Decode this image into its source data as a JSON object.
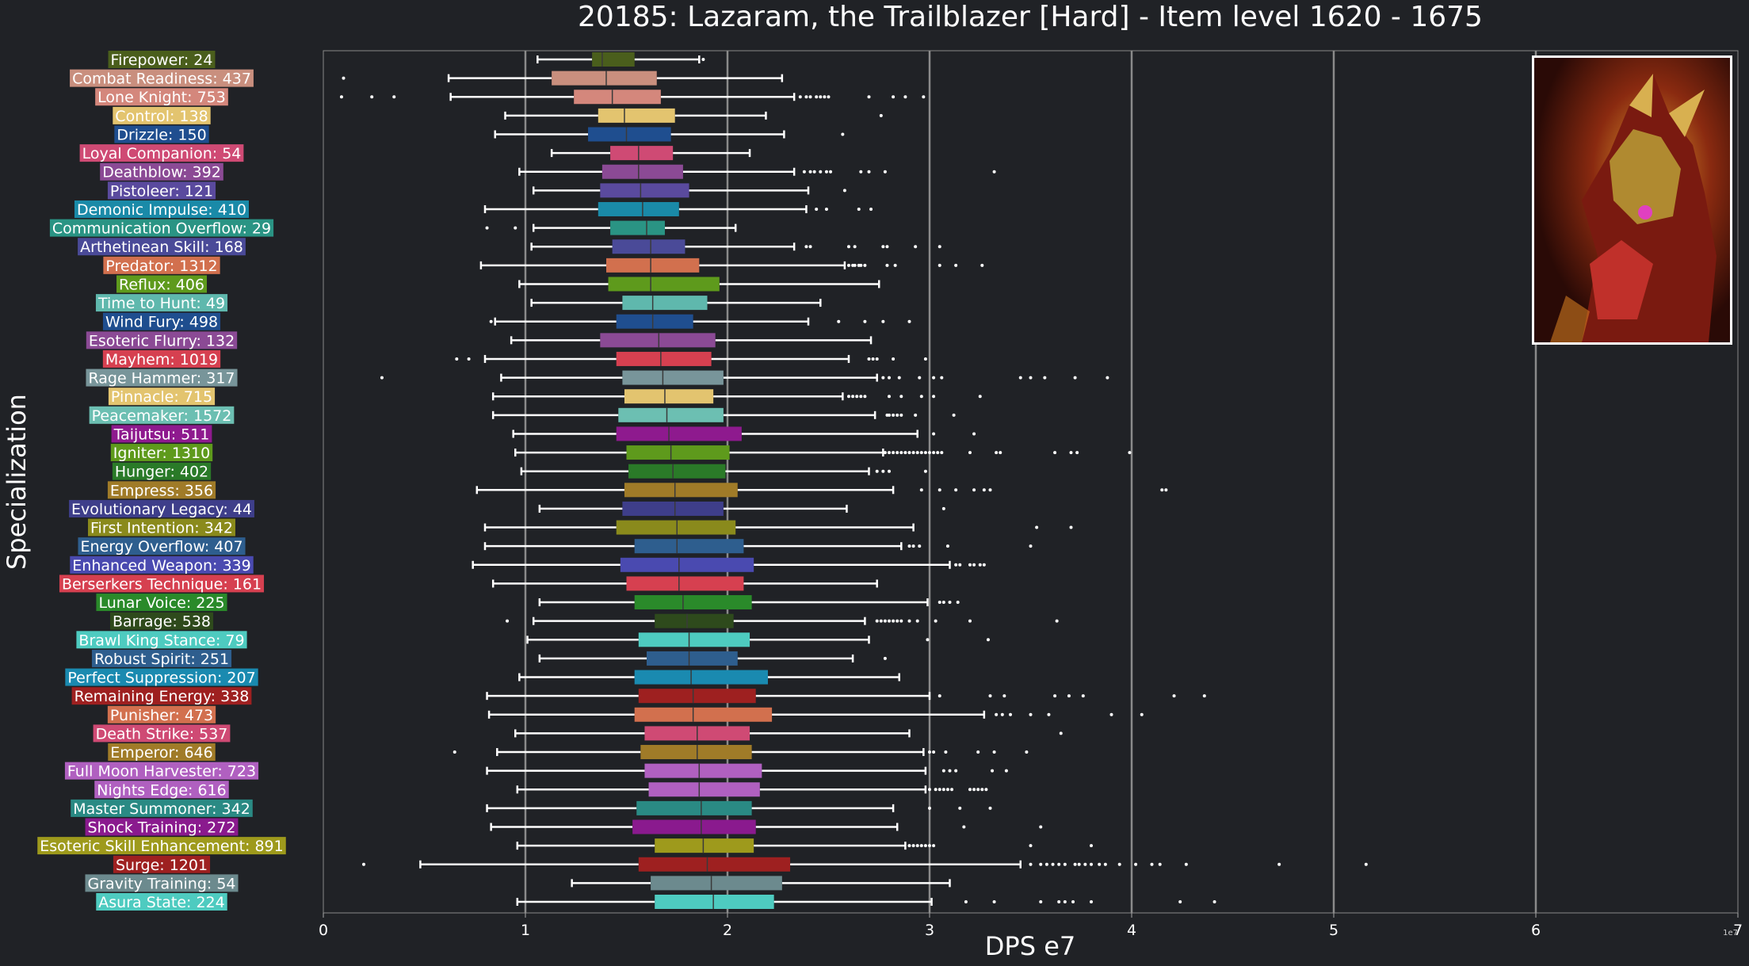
{
  "chart_data": {
    "type": "boxplot",
    "title": "20185: Lazaram, the Trailblazer [Hard] - Item level 1620 - 1675",
    "xlabel": "DPS e7",
    "ylabel": "Specialization",
    "xlim": [
      0,
      7
    ],
    "x_ticks": [
      "0",
      "1",
      "2",
      "3",
      "4",
      "5",
      "6",
      "7"
    ],
    "x_offset_label": "1e7",
    "grid": "vertical",
    "series": [
      {
        "label": "Firepower: 24",
        "color": "#4a5e1c",
        "whisker_low": 1.06,
        "q1": 1.33,
        "median": 1.38,
        "q3": 1.54,
        "whisker_high": 1.86,
        "outliers": [
          1.88
        ]
      },
      {
        "label": "Combat Readiness: 437",
        "color": "#c98f7e",
        "whisker_low": 0.62,
        "q1": 1.13,
        "median": 1.4,
        "q3": 1.65,
        "whisker_high": 2.27,
        "outliers": [
          0.1
        ]
      },
      {
        "label": "Lone Knight: 753",
        "color": "#d4877c",
        "whisker_low": 0.63,
        "q1": 1.24,
        "median": 1.43,
        "q3": 1.67,
        "whisker_high": 2.33,
        "outliers": [
          0.09,
          0.24,
          0.35,
          2.36,
          2.39,
          2.41,
          2.44,
          2.46,
          2.48,
          2.5,
          2.7,
          2.82,
          2.88,
          2.97
        ]
      },
      {
        "label": "Control: 138",
        "color": "#e3c46f",
        "whisker_low": 0.9,
        "q1": 1.36,
        "median": 1.49,
        "q3": 1.74,
        "whisker_high": 2.19,
        "outliers": [
          2.76
        ]
      },
      {
        "label": "Drizzle: 150",
        "color": "#1f4e8f",
        "whisker_low": 0.85,
        "q1": 1.31,
        "median": 1.5,
        "q3": 1.72,
        "whisker_high": 2.28,
        "outliers": [
          2.57
        ]
      },
      {
        "label": "Loyal Companion: 54",
        "color": "#cf4a74",
        "whisker_low": 1.13,
        "q1": 1.42,
        "median": 1.56,
        "q3": 1.73,
        "whisker_high": 2.11,
        "outliers": []
      },
      {
        "label": "Deathblow: 392",
        "color": "#8b4a95",
        "whisker_low": 0.97,
        "q1": 1.38,
        "median": 1.56,
        "q3": 1.78,
        "whisker_high": 2.33,
        "outliers": [
          2.38,
          2.41,
          2.43,
          2.46,
          2.49,
          2.51,
          2.66,
          2.7,
          2.78,
          3.32
        ]
      },
      {
        "label": "Pistoleer: 121",
        "color": "#5a4a9e",
        "whisker_low": 1.04,
        "q1": 1.37,
        "median": 1.57,
        "q3": 1.81,
        "whisker_high": 2.4,
        "outliers": [
          2.58
        ]
      },
      {
        "label": "Demonic Impulse: 410",
        "color": "#1a8aa8",
        "whisker_low": 0.8,
        "q1": 1.36,
        "median": 1.58,
        "q3": 1.76,
        "whisker_high": 2.39,
        "outliers": [
          2.44,
          2.49,
          2.65,
          2.71
        ]
      },
      {
        "label": "Communication Overflow: 29",
        "color": "#2a9484",
        "whisker_low": 1.04,
        "q1": 1.42,
        "median": 1.6,
        "q3": 1.69,
        "whisker_high": 2.04,
        "outliers": [
          0.81,
          0.95
        ]
      },
      {
        "label": "Arthetinean Skill: 168",
        "color": "#4a4a98",
        "whisker_low": 1.03,
        "q1": 1.43,
        "median": 1.62,
        "q3": 1.79,
        "whisker_high": 2.33,
        "outliers": [
          2.39,
          2.41,
          2.6,
          2.63,
          2.77,
          2.79,
          2.93,
          3.05
        ]
      },
      {
        "label": "Predator: 1312",
        "color": "#d2704e",
        "whisker_low": 0.78,
        "q1": 1.4,
        "median": 1.62,
        "q3": 1.86,
        "whisker_high": 2.58,
        "outliers": [
          2.6,
          2.62,
          2.63,
          2.65,
          2.66,
          2.68,
          2.79,
          2.83,
          3.05,
          3.13,
          3.26
        ]
      },
      {
        "label": "Reflux: 406",
        "color": "#5e9a1c",
        "whisker_low": 0.97,
        "q1": 1.41,
        "median": 1.62,
        "q3": 1.96,
        "whisker_high": 2.75,
        "outliers": []
      },
      {
        "label": "Time to Hunt: 49",
        "color": "#5fb8ad",
        "whisker_low": 1.03,
        "q1": 1.48,
        "median": 1.63,
        "q3": 1.9,
        "whisker_high": 2.46,
        "outliers": []
      },
      {
        "label": "Wind Fury: 498",
        "color": "#1f4e8f",
        "whisker_low": 0.85,
        "q1": 1.45,
        "median": 1.63,
        "q3": 1.83,
        "whisker_high": 2.4,
        "outliers": [
          0.83,
          2.55,
          2.68,
          2.77,
          2.9
        ]
      },
      {
        "label": "Esoteric Flurry: 132",
        "color": "#8b4a95",
        "whisker_low": 0.93,
        "q1": 1.37,
        "median": 1.66,
        "q3": 1.94,
        "whisker_high": 2.71,
        "outliers": []
      },
      {
        "label": "Mayhem: 1019",
        "color": "#d64050",
        "whisker_low": 0.8,
        "q1": 1.45,
        "median": 1.67,
        "q3": 1.92,
        "whisker_high": 2.6,
        "outliers": [
          0.66,
          0.72,
          2.7,
          2.72,
          2.74,
          2.82,
          2.98
        ]
      },
      {
        "label": "Rage Hammer: 317",
        "color": "#78959a",
        "whisker_low": 0.88,
        "q1": 1.48,
        "median": 1.68,
        "q3": 1.98,
        "whisker_high": 2.74,
        "outliers": [
          0.29,
          2.77,
          2.8,
          2.85,
          2.95,
          3.02,
          3.06,
          3.45,
          3.5,
          3.57,
          3.72,
          3.88
        ]
      },
      {
        "label": "Pinnacle: 715",
        "color": "#e3c46f",
        "whisker_low": 0.84,
        "q1": 1.49,
        "median": 1.69,
        "q3": 1.93,
        "whisker_high": 2.57,
        "outliers": [
          2.6,
          2.62,
          2.64,
          2.66,
          2.68,
          2.8,
          2.86,
          2.96,
          3.02,
          3.25
        ]
      },
      {
        "label": "Peacemaker: 1572",
        "color": "#6cbfb2",
        "whisker_low": 0.84,
        "q1": 1.46,
        "median": 1.7,
        "q3": 1.98,
        "whisker_high": 2.73,
        "outliers": [
          2.79,
          2.8,
          2.82,
          2.84,
          2.86,
          2.93,
          3.12
        ]
      },
      {
        "label": "Taijutsu: 511",
        "color": "#8e1a8e",
        "whisker_low": 0.94,
        "q1": 1.45,
        "median": 1.71,
        "q3": 2.07,
        "whisker_high": 2.94,
        "outliers": [
          3.02,
          3.22
        ]
      },
      {
        "label": "Igniter: 1310",
        "color": "#5e9a1c",
        "whisker_low": 0.95,
        "q1": 1.5,
        "median": 1.72,
        "q3": 2.01,
        "whisker_high": 2.77,
        "outliers": [
          2.78,
          2.8,
          2.82,
          2.84,
          2.86,
          2.88,
          2.9,
          2.92,
          2.94,
          2.96,
          2.98,
          3.0,
          3.02,
          3.04,
          3.06,
          3.2,
          3.33,
          3.35,
          3.62,
          3.7,
          3.73,
          3.99
        ]
      },
      {
        "label": "Hunger: 402",
        "color": "#2a7a28",
        "whisker_low": 0.98,
        "q1": 1.51,
        "median": 1.73,
        "q3": 1.99,
        "whisker_high": 2.7,
        "outliers": [
          2.74,
          2.77,
          2.8,
          2.98
        ]
      },
      {
        "label": "Empress: 356",
        "color": "#a07b28",
        "whisker_low": 0.76,
        "q1": 1.49,
        "median": 1.74,
        "q3": 2.05,
        "whisker_high": 2.82,
        "outliers": [
          2.96,
          3.05,
          3.13,
          3.22,
          3.27,
          3.3,
          4.15,
          4.17
        ]
      },
      {
        "label": "Evolutionary Legacy: 44",
        "color": "#3e3e8a",
        "whisker_low": 1.07,
        "q1": 1.48,
        "median": 1.74,
        "q3": 1.98,
        "whisker_high": 2.59,
        "outliers": [
          3.07
        ]
      },
      {
        "label": "First Intention: 342",
        "color": "#8a8a1c",
        "whisker_low": 0.8,
        "q1": 1.45,
        "median": 1.75,
        "q3": 2.04,
        "whisker_high": 2.92,
        "outliers": [
          3.53,
          3.7
        ]
      },
      {
        "label": "Energy Overflow: 407",
        "color": "#2e5e8e",
        "whisker_low": 0.8,
        "q1": 1.54,
        "median": 1.75,
        "q3": 2.08,
        "whisker_high": 2.86,
        "outliers": [
          2.9,
          2.92,
          2.95,
          3.09,
          3.5
        ]
      },
      {
        "label": "Enhanced Weapon: 339",
        "color": "#4a4ab0",
        "whisker_low": 0.74,
        "q1": 1.47,
        "median": 1.76,
        "q3": 2.13,
        "whisker_high": 3.1,
        "outliers": [
          3.13,
          3.15,
          3.2,
          3.22,
          3.25,
          3.27
        ]
      },
      {
        "label": "Berserkers Technique: 161",
        "color": "#d64050",
        "whisker_low": 0.84,
        "q1": 1.5,
        "median": 1.76,
        "q3": 2.08,
        "whisker_high": 2.74,
        "outliers": []
      },
      {
        "label": "Lunar Voice: 225",
        "color": "#2a8a2a",
        "whisker_low": 1.07,
        "q1": 1.54,
        "median": 1.78,
        "q3": 2.12,
        "whisker_high": 2.99,
        "outliers": [
          3.05,
          3.07,
          3.1,
          3.14
        ]
      },
      {
        "label": "Barrage: 538",
        "color": "#2e4a1c",
        "whisker_low": 1.04,
        "q1": 1.64,
        "median": 1.8,
        "q3": 2.03,
        "whisker_high": 2.68,
        "outliers": [
          0.91,
          2.74,
          2.76,
          2.78,
          2.8,
          2.82,
          2.84,
          2.86,
          2.9,
          2.94,
          3.03,
          3.2,
          3.63
        ]
      },
      {
        "label": "Brawl King Stance: 79",
        "color": "#4ecbc0",
        "whisker_low": 1.01,
        "q1": 1.56,
        "median": 1.81,
        "q3": 2.11,
        "whisker_high": 2.7,
        "outliers": [
          2.99,
          3.29
        ]
      },
      {
        "label": "Robust Spirit: 251",
        "color": "#2e5e8e",
        "whisker_low": 1.07,
        "q1": 1.6,
        "median": 1.81,
        "q3": 2.05,
        "whisker_high": 2.62,
        "outliers": [
          2.78
        ]
      },
      {
        "label": "Perfect Suppression: 207",
        "color": "#1a8ab0",
        "whisker_low": 0.97,
        "q1": 1.54,
        "median": 1.82,
        "q3": 2.2,
        "whisker_high": 2.85,
        "outliers": []
      },
      {
        "label": "Remaining Energy: 338",
        "color": "#9e2020",
        "whisker_low": 0.81,
        "q1": 1.56,
        "median": 1.83,
        "q3": 2.14,
        "whisker_high": 3.0,
        "outliers": [
          3.05,
          3.3,
          3.37,
          3.62,
          3.69,
          3.76,
          4.21,
          4.36
        ]
      },
      {
        "label": "Punisher: 473",
        "color": "#d2704e",
        "whisker_low": 0.82,
        "q1": 1.54,
        "median": 1.83,
        "q3": 2.22,
        "whisker_high": 3.27,
        "outliers": [
          3.33,
          3.36,
          3.4,
          3.5,
          3.59,
          3.9,
          4.05
        ]
      },
      {
        "label": "Death Strike: 537",
        "color": "#cf4a74",
        "whisker_low": 0.95,
        "q1": 1.59,
        "median": 1.85,
        "q3": 2.11,
        "whisker_high": 2.9,
        "outliers": [
          3.65
        ]
      },
      {
        "label": "Emperor: 646",
        "color": "#a07b28",
        "whisker_low": 0.86,
        "q1": 1.57,
        "median": 1.85,
        "q3": 2.12,
        "whisker_high": 2.97,
        "outliers": [
          0.65,
          3.0,
          3.02,
          3.08,
          3.24,
          3.32,
          3.48
        ]
      },
      {
        "label": "Full Moon Harvester: 723",
        "color": "#b060c0",
        "whisker_low": 0.81,
        "q1": 1.59,
        "median": 1.86,
        "q3": 2.17,
        "whisker_high": 2.98,
        "outliers": [
          3.07,
          3.1,
          3.13,
          3.31,
          3.38
        ]
      },
      {
        "label": "Nights Edge: 616",
        "color": "#b060c0",
        "whisker_low": 0.96,
        "q1": 1.61,
        "median": 1.86,
        "q3": 2.16,
        "whisker_high": 2.98,
        "outliers": [
          3.0,
          3.03,
          3.05,
          3.07,
          3.09,
          3.11,
          3.2,
          3.22,
          3.24,
          3.26,
          3.28
        ]
      },
      {
        "label": "Master Summoner: 342",
        "color": "#2a8a84",
        "whisker_low": 0.81,
        "q1": 1.55,
        "median": 1.87,
        "q3": 2.12,
        "whisker_high": 2.82,
        "outliers": [
          3.0,
          3.15,
          3.3
        ]
      },
      {
        "label": "Shock Training: 272",
        "color": "#8a1a8e",
        "whisker_low": 0.83,
        "q1": 1.53,
        "median": 1.87,
        "q3": 2.14,
        "whisker_high": 2.84,
        "outliers": [
          3.17,
          3.55
        ]
      },
      {
        "label": "Esoteric Skill Enhancement: 891",
        "color": "#9e9a1c",
        "whisker_low": 0.96,
        "q1": 1.64,
        "median": 1.88,
        "q3": 2.13,
        "whisker_high": 2.88,
        "outliers": [
          2.9,
          2.92,
          2.94,
          2.96,
          2.98,
          3.0,
          3.02,
          3.5,
          3.8
        ]
      },
      {
        "label": "Surge: 1201",
        "color": "#9e2020",
        "whisker_low": 0.48,
        "q1": 1.56,
        "median": 1.9,
        "q3": 2.31,
        "whisker_high": 3.45,
        "outliers": [
          0.2,
          3.5,
          3.55,
          3.58,
          3.61,
          3.64,
          3.67,
          3.72,
          3.74,
          3.77,
          3.8,
          3.84,
          3.87,
          3.94,
          4.02,
          4.1,
          4.14,
          4.27,
          4.73,
          5.16
        ]
      },
      {
        "label": "Gravity Training: 54",
        "color": "#6c8a8e",
        "whisker_low": 1.23,
        "q1": 1.62,
        "median": 1.92,
        "q3": 2.27,
        "whisker_high": 3.1,
        "outliers": []
      },
      {
        "label": "Asura State: 224",
        "color": "#4ecbc0",
        "whisker_low": 0.96,
        "q1": 1.64,
        "median": 1.93,
        "q3": 2.23,
        "whisker_high": 3.01,
        "outliers": [
          3.18,
          3.32,
          3.55,
          3.64,
          3.67,
          3.71,
          3.8,
          4.24,
          4.41
        ]
      }
    ]
  }
}
